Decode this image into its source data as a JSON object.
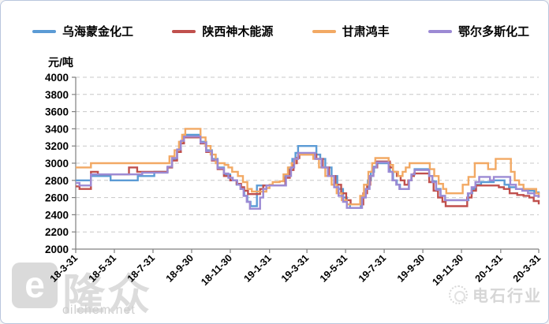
{
  "watermarks": {
    "logo_letter": "e",
    "brand": "隆众",
    "site": "oilchem.net",
    "right_text": "电石行业"
  },
  "chart_data": {
    "type": "line",
    "title": "",
    "ylabel": "元/吨",
    "ylim": [
      2000,
      4000
    ],
    "ytick_step": 200,
    "grid": "dashed-horizontal",
    "legend_position": "top",
    "line_style": "step-after-weekly",
    "x_unit": "days since 18-3-31",
    "x_range_days": [
      0,
      731
    ],
    "x_tick_labels": [
      "18-3-31",
      "18-5-31",
      "18-7-31",
      "18-9-30",
      "18-11-30",
      "19-1-31",
      "19-3-31",
      "19-5-31",
      "19-7-31",
      "19-9-30",
      "19-11-30",
      "20-1-31",
      "20-3-31"
    ],
    "x_tick_days": [
      0,
      61,
      122,
      183,
      244,
      306,
      365,
      426,
      487,
      548,
      609,
      671,
      731
    ],
    "series": [
      {
        "name": "乌海蒙金化工",
        "color": "#5B9BD5",
        "points": [
          [
            0,
            2800
          ],
          [
            22,
            2800
          ],
          [
            24,
            2850
          ],
          [
            52,
            2850
          ],
          [
            55,
            2800
          ],
          [
            95,
            2800
          ],
          [
            98,
            2850
          ],
          [
            120,
            2850
          ],
          [
            124,
            2900
          ],
          [
            138,
            2900
          ],
          [
            145,
            2950
          ],
          [
            152,
            3050
          ],
          [
            160,
            3150
          ],
          [
            166,
            3250
          ],
          [
            171,
            3330
          ],
          [
            190,
            3330
          ],
          [
            197,
            3250
          ],
          [
            206,
            3150
          ],
          [
            215,
            3050
          ],
          [
            224,
            2950
          ],
          [
            234,
            2870
          ],
          [
            244,
            2800
          ],
          [
            254,
            2750
          ],
          [
            261,
            2700
          ],
          [
            266,
            2620
          ],
          [
            271,
            2550
          ],
          [
            276,
            2500
          ],
          [
            282,
            2500
          ],
          [
            286,
            2740
          ],
          [
            324,
            2740
          ],
          [
            331,
            2850
          ],
          [
            337,
            2950
          ],
          [
            342,
            3050
          ],
          [
            347,
            3120
          ],
          [
            351,
            3200
          ],
          [
            374,
            3200
          ],
          [
            380,
            3100
          ],
          [
            386,
            3050
          ],
          [
            394,
            2950
          ],
          [
            404,
            2850
          ],
          [
            413,
            2700
          ],
          [
            422,
            2600
          ],
          [
            428,
            2520
          ],
          [
            433,
            2480
          ],
          [
            444,
            2480
          ],
          [
            450,
            2600
          ],
          [
            456,
            2700
          ],
          [
            461,
            2800
          ],
          [
            466,
            2900
          ],
          [
            471,
            2960
          ],
          [
            476,
            3000
          ],
          [
            490,
            3000
          ],
          [
            496,
            2900
          ],
          [
            501,
            2800
          ],
          [
            507,
            2750
          ],
          [
            512,
            2700
          ],
          [
            520,
            2700
          ],
          [
            526,
            2800
          ],
          [
            530,
            2870
          ],
          [
            535,
            2930
          ],
          [
            552,
            2930
          ],
          [
            558,
            2850
          ],
          [
            563,
            2790
          ],
          [
            569,
            2700
          ],
          [
            576,
            2620
          ],
          [
            583,
            2570
          ],
          [
            614,
            2570
          ],
          [
            620,
            2650
          ],
          [
            626,
            2700
          ],
          [
            632,
            2750
          ],
          [
            640,
            2780
          ],
          [
            656,
            2780
          ],
          [
            660,
            2800
          ],
          [
            672,
            2800
          ],
          [
            677,
            2750
          ],
          [
            684,
            2720
          ],
          [
            695,
            2700
          ],
          [
            715,
            2680
          ],
          [
            724,
            2660
          ],
          [
            731,
            2640
          ]
        ]
      },
      {
        "name": "陕西神木能源",
        "color": "#C0504D",
        "points": [
          [
            0,
            2730
          ],
          [
            6,
            2700
          ],
          [
            22,
            2700
          ],
          [
            24,
            2900
          ],
          [
            32,
            2900
          ],
          [
            35,
            2870
          ],
          [
            80,
            2870
          ],
          [
            84,
            2950
          ],
          [
            94,
            2950
          ],
          [
            97,
            2900
          ],
          [
            138,
            2900
          ],
          [
            145,
            2950
          ],
          [
            152,
            3030
          ],
          [
            160,
            3130
          ],
          [
            166,
            3230
          ],
          [
            171,
            3300
          ],
          [
            190,
            3300
          ],
          [
            197,
            3230
          ],
          [
            206,
            3130
          ],
          [
            215,
            3030
          ],
          [
            224,
            2930
          ],
          [
            234,
            2850
          ],
          [
            244,
            2800
          ],
          [
            254,
            2760
          ],
          [
            261,
            2720
          ],
          [
            266,
            2680
          ],
          [
            272,
            2640
          ],
          [
            286,
            2640
          ],
          [
            291,
            2700
          ],
          [
            296,
            2740
          ],
          [
            324,
            2740
          ],
          [
            331,
            2830
          ],
          [
            338,
            2920
          ],
          [
            344,
            3000
          ],
          [
            349,
            3060
          ],
          [
            353,
            3100
          ],
          [
            372,
            3100
          ],
          [
            380,
            3050
          ],
          [
            390,
            2950
          ],
          [
            400,
            2850
          ],
          [
            410,
            2750
          ],
          [
            419,
            2650
          ],
          [
            427,
            2570
          ],
          [
            434,
            2520
          ],
          [
            448,
            2520
          ],
          [
            454,
            2650
          ],
          [
            460,
            2750
          ],
          [
            465,
            2850
          ],
          [
            470,
            2950
          ],
          [
            476,
            3020
          ],
          [
            490,
            3020
          ],
          [
            496,
            2950
          ],
          [
            501,
            2900
          ],
          [
            507,
            2850
          ],
          [
            513,
            2800
          ],
          [
            519,
            2750
          ],
          [
            525,
            2800
          ],
          [
            530,
            2850
          ],
          [
            534,
            2880
          ],
          [
            550,
            2880
          ],
          [
            558,
            2780
          ],
          [
            565,
            2680
          ],
          [
            572,
            2600
          ],
          [
            579,
            2550
          ],
          [
            584,
            2500
          ],
          [
            612,
            2500
          ],
          [
            618,
            2600
          ],
          [
            625,
            2680
          ],
          [
            632,
            2740
          ],
          [
            662,
            2740
          ],
          [
            668,
            2720
          ],
          [
            676,
            2700
          ],
          [
            685,
            2650
          ],
          [
            697,
            2630
          ],
          [
            707,
            2620
          ],
          [
            716,
            2600
          ],
          [
            723,
            2560
          ],
          [
            731,
            2520
          ]
        ]
      },
      {
        "name": "甘肃鸿丰",
        "color": "#F2A964",
        "points": [
          [
            0,
            2950
          ],
          [
            22,
            2950
          ],
          [
            24,
            3000
          ],
          [
            140,
            3000
          ],
          [
            148,
            3080
          ],
          [
            156,
            3150
          ],
          [
            163,
            3250
          ],
          [
            168,
            3330
          ],
          [
            173,
            3400
          ],
          [
            190,
            3400
          ],
          [
            197,
            3300
          ],
          [
            205,
            3200
          ],
          [
            213,
            3100
          ],
          [
            221,
            3000
          ],
          [
            235,
            2980
          ],
          [
            241,
            2950
          ],
          [
            247,
            2900
          ],
          [
            256,
            2850
          ],
          [
            264,
            2780
          ],
          [
            271,
            2700
          ],
          [
            278,
            2670
          ],
          [
            296,
            2670
          ],
          [
            301,
            2710
          ],
          [
            306,
            2750
          ],
          [
            311,
            2780
          ],
          [
            322,
            2790
          ],
          [
            328,
            2870
          ],
          [
            335,
            2950
          ],
          [
            341,
            3000
          ],
          [
            346,
            3050
          ],
          [
            351,
            3100
          ],
          [
            366,
            3100
          ],
          [
            375,
            3050
          ],
          [
            384,
            2950
          ],
          [
            394,
            2850
          ],
          [
            404,
            2750
          ],
          [
            412,
            2650
          ],
          [
            420,
            2570
          ],
          [
            428,
            2520
          ],
          [
            443,
            2520
          ],
          [
            449,
            2620
          ],
          [
            455,
            2750
          ],
          [
            462,
            2900
          ],
          [
            468,
            3000
          ],
          [
            473,
            3060
          ],
          [
            487,
            3060
          ],
          [
            494,
            2980
          ],
          [
            501,
            2900
          ],
          [
            509,
            2850
          ],
          [
            516,
            2900
          ],
          [
            521,
            2950
          ],
          [
            527,
            3000
          ],
          [
            554,
            3000
          ],
          [
            559,
            2930
          ],
          [
            566,
            2850
          ],
          [
            573,
            2760
          ],
          [
            580,
            2700
          ],
          [
            585,
            2650
          ],
          [
            607,
            2650
          ],
          [
            611,
            2750
          ],
          [
            620,
            2840
          ],
          [
            630,
            3000
          ],
          [
            646,
            3000
          ],
          [
            651,
            2930
          ],
          [
            658,
            2930
          ],
          [
            663,
            3050
          ],
          [
            681,
            3050
          ],
          [
            687,
            2900
          ],
          [
            693,
            2800
          ],
          [
            700,
            2750
          ],
          [
            707,
            2700
          ],
          [
            722,
            2700
          ],
          [
            727,
            2650
          ],
          [
            731,
            2600
          ]
        ]
      },
      {
        "name": "鄂尔多斯化工",
        "color": "#9C8AD4",
        "points": [
          [
            0,
            2770
          ],
          [
            6,
            2740
          ],
          [
            22,
            2740
          ],
          [
            24,
            2870
          ],
          [
            100,
            2870
          ],
          [
            105,
            2890
          ],
          [
            138,
            2890
          ],
          [
            145,
            2960
          ],
          [
            152,
            3060
          ],
          [
            160,
            3160
          ],
          [
            166,
            3260
          ],
          [
            171,
            3310
          ],
          [
            190,
            3310
          ],
          [
            197,
            3240
          ],
          [
            206,
            3140
          ],
          [
            215,
            3040
          ],
          [
            224,
            2940
          ],
          [
            234,
            2880
          ],
          [
            241,
            2830
          ],
          [
            248,
            2800
          ],
          [
            255,
            2750
          ],
          [
            260,
            2700
          ],
          [
            265,
            2620
          ],
          [
            270,
            2550
          ],
          [
            275,
            2470
          ],
          [
            286,
            2470
          ],
          [
            291,
            2600
          ],
          [
            296,
            2700
          ],
          [
            301,
            2740
          ],
          [
            324,
            2740
          ],
          [
            332,
            2850
          ],
          [
            340,
            2950
          ],
          [
            345,
            3050
          ],
          [
            351,
            3120
          ],
          [
            370,
            3120
          ],
          [
            378,
            3050
          ],
          [
            388,
            2950
          ],
          [
            398,
            2850
          ],
          [
            408,
            2720
          ],
          [
            415,
            2620
          ],
          [
            422,
            2550
          ],
          [
            428,
            2480
          ],
          [
            445,
            2480
          ],
          [
            452,
            2600
          ],
          [
            458,
            2700
          ],
          [
            464,
            2850
          ],
          [
            470,
            2950
          ],
          [
            475,
            3010
          ],
          [
            488,
            3010
          ],
          [
            494,
            2900
          ],
          [
            500,
            2800
          ],
          [
            506,
            2750
          ],
          [
            511,
            2700
          ],
          [
            520,
            2700
          ],
          [
            526,
            2800
          ],
          [
            530,
            2870
          ],
          [
            535,
            2920
          ],
          [
            552,
            2920
          ],
          [
            558,
            2850
          ],
          [
            563,
            2780
          ],
          [
            569,
            2690
          ],
          [
            576,
            2620
          ],
          [
            583,
            2570
          ],
          [
            614,
            2570
          ],
          [
            619,
            2650
          ],
          [
            625,
            2720
          ],
          [
            631,
            2780
          ],
          [
            637,
            2840
          ],
          [
            650,
            2840
          ],
          [
            654,
            2800
          ],
          [
            660,
            2840
          ],
          [
            678,
            2840
          ],
          [
            686,
            2750
          ],
          [
            695,
            2700
          ],
          [
            705,
            2680
          ],
          [
            714,
            2650
          ],
          [
            724,
            2620
          ],
          [
            731,
            2600
          ]
        ]
      }
    ]
  }
}
